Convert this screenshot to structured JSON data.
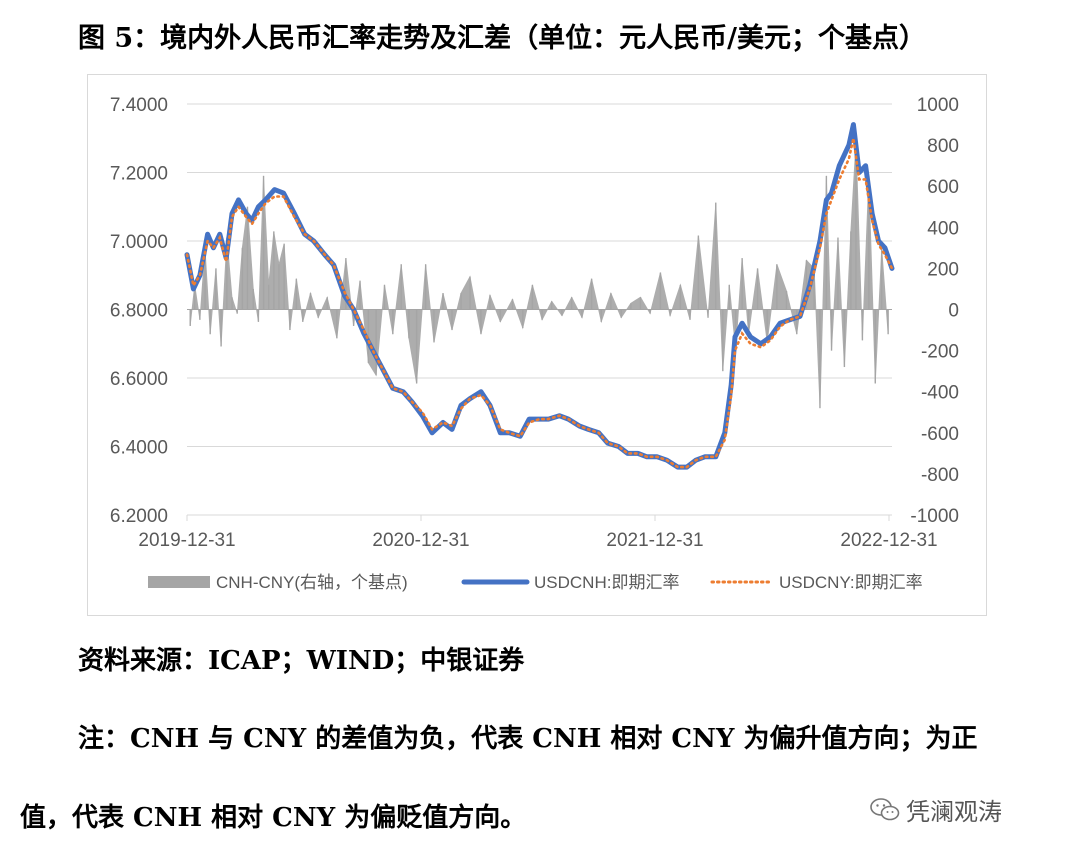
{
  "title": "图 5：境内外人民币汇率走势及汇差（单位：元人民币/美元；个基点）",
  "source_text": "资料来源：ICAP；WIND；中银证券",
  "note_line1": "注：CNH 与 CNY 的差值为负，代表 CNH 相对 CNY 为偏升值方向；为正",
  "note_line2": "值，代表 CNH 相对 CNY 为偏贬值方向。",
  "watermark": "凭澜观涛",
  "colors": {
    "spread": "#a5a5a5",
    "usdcnh": "#4472c4",
    "usdcny": "#ed7d31",
    "grid": "#d9d9d9",
    "axis_text": "#595959"
  },
  "chart_data": {
    "type": "line",
    "x_ticks": [
      "2019-12-31",
      "2020-12-31",
      "2021-12-31",
      "2022-12-31"
    ],
    "left_axis": {
      "ylim": [
        6.2,
        7.4
      ],
      "ticks": [
        "6.2000",
        "6.4000",
        "6.6000",
        "6.8000",
        "7.0000",
        "7.2000",
        "7.4000"
      ]
    },
    "right_axis": {
      "ylim": [
        -1000,
        1000
      ],
      "ticks": [
        "-1000",
        "-800",
        "-600",
        "-400",
        "-200",
        "0",
        "200",
        "400",
        "600",
        "800",
        "1000"
      ]
    },
    "legend": [
      "CNH-CNY(右轴，个基点)",
      "USDCNH:即期汇率",
      "USDCNY:即期汇率"
    ],
    "legend_position": "bottom",
    "series": [
      {
        "name": "USDCNH:即期汇率",
        "axis": "left",
        "x": [
          "2019-12-31",
          "2020-01-10",
          "2020-01-20",
          "2020-02-01",
          "2020-02-10",
          "2020-02-20",
          "2020-03-01",
          "2020-03-10",
          "2020-03-20",
          "2020-04-01",
          "2020-04-10",
          "2020-04-20",
          "2020-05-01",
          "2020-05-15",
          "2020-05-29",
          "2020-06-15",
          "2020-07-01",
          "2020-07-15",
          "2020-08-01",
          "2020-08-15",
          "2020-09-01",
          "2020-09-15",
          "2020-10-01",
          "2020-10-15",
          "2020-11-01",
          "2020-11-15",
          "2020-12-01",
          "2020-12-15",
          "2020-12-31",
          "2021-01-15",
          "2021-02-01",
          "2021-02-15",
          "2021-03-01",
          "2021-03-15",
          "2021-04-01",
          "2021-04-15",
          "2021-05-01",
          "2021-05-15",
          "2021-06-01",
          "2021-06-15",
          "2021-07-01",
          "2021-07-15",
          "2021-08-01",
          "2021-08-15",
          "2021-09-01",
          "2021-09-15",
          "2021-10-01",
          "2021-10-15",
          "2021-11-01",
          "2021-11-15",
          "2021-12-01",
          "2021-12-15",
          "2021-12-31",
          "2022-01-15",
          "2022-02-01",
          "2022-02-15",
          "2022-03-01",
          "2022-03-15",
          "2022-04-01",
          "2022-04-15",
          "2022-04-25",
          "2022-05-01",
          "2022-05-12",
          "2022-05-25",
          "2022-06-10",
          "2022-06-25",
          "2022-07-10",
          "2022-07-25",
          "2022-08-10",
          "2022-08-25",
          "2022-09-10",
          "2022-09-20",
          "2022-09-28",
          "2022-10-10",
          "2022-10-25",
          "2022-11-01",
          "2022-11-10",
          "2022-11-20",
          "2022-11-30",
          "2022-12-10",
          "2022-12-20",
          "2022-12-31"
        ],
        "values": [
          6.96,
          6.86,
          6.9,
          7.02,
          6.98,
          7.02,
          6.95,
          7.08,
          7.12,
          7.08,
          7.06,
          7.1,
          7.12,
          7.15,
          7.14,
          7.08,
          7.02,
          7.0,
          6.96,
          6.93,
          6.84,
          6.8,
          6.73,
          6.68,
          6.62,
          6.57,
          6.56,
          6.53,
          6.49,
          6.44,
          6.47,
          6.45,
          6.52,
          6.54,
          6.56,
          6.52,
          6.44,
          6.44,
          6.43,
          6.48,
          6.48,
          6.48,
          6.49,
          6.48,
          6.46,
          6.45,
          6.44,
          6.41,
          6.4,
          6.38,
          6.38,
          6.37,
          6.37,
          6.36,
          6.34,
          6.34,
          6.36,
          6.37,
          6.37,
          6.44,
          6.58,
          6.72,
          6.76,
          6.72,
          6.7,
          6.72,
          6.76,
          6.77,
          6.78,
          6.87,
          7.0,
          7.12,
          7.14,
          7.22,
          7.28,
          7.34,
          7.2,
          7.22,
          7.08,
          7.0,
          6.98,
          6.92
        ]
      },
      {
        "name": "USDCNY:即期汇率",
        "axis": "left",
        "x": [
          "2019-12-31",
          "2020-01-10",
          "2020-01-20",
          "2020-02-01",
          "2020-02-10",
          "2020-02-20",
          "2020-03-01",
          "2020-03-10",
          "2020-03-20",
          "2020-04-01",
          "2020-04-10",
          "2020-04-20",
          "2020-05-01",
          "2020-05-15",
          "2020-05-29",
          "2020-06-15",
          "2020-07-01",
          "2020-07-15",
          "2020-08-01",
          "2020-08-15",
          "2020-09-01",
          "2020-09-15",
          "2020-10-01",
          "2020-10-15",
          "2020-11-01",
          "2020-11-15",
          "2020-12-01",
          "2020-12-15",
          "2020-12-31",
          "2021-01-15",
          "2021-02-01",
          "2021-02-15",
          "2021-03-01",
          "2021-03-15",
          "2021-04-01",
          "2021-04-15",
          "2021-05-01",
          "2021-05-15",
          "2021-06-01",
          "2021-06-15",
          "2021-07-01",
          "2021-07-15",
          "2021-08-01",
          "2021-08-15",
          "2021-09-01",
          "2021-09-15",
          "2021-10-01",
          "2021-10-15",
          "2021-11-01",
          "2021-11-15",
          "2021-12-01",
          "2021-12-15",
          "2021-12-31",
          "2022-01-15",
          "2022-02-01",
          "2022-02-15",
          "2022-03-01",
          "2022-03-15",
          "2022-04-01",
          "2022-04-15",
          "2022-04-25",
          "2022-05-01",
          "2022-05-12",
          "2022-05-25",
          "2022-06-10",
          "2022-06-25",
          "2022-07-10",
          "2022-07-25",
          "2022-08-10",
          "2022-08-25",
          "2022-09-10",
          "2022-09-20",
          "2022-09-28",
          "2022-10-10",
          "2022-10-25",
          "2022-11-01",
          "2022-11-10",
          "2022-11-20",
          "2022-11-30",
          "2022-12-10",
          "2022-12-20",
          "2022-12-31"
        ],
        "values": [
          6.96,
          6.87,
          6.9,
          7.0,
          6.98,
          7.01,
          6.94,
          7.07,
          7.1,
          7.07,
          7.05,
          7.08,
          7.11,
          7.13,
          7.13,
          7.07,
          7.02,
          7.0,
          6.96,
          6.93,
          6.85,
          6.8,
          6.74,
          6.68,
          6.62,
          6.57,
          6.56,
          6.53,
          6.5,
          6.45,
          6.47,
          6.46,
          6.51,
          6.54,
          6.55,
          6.52,
          6.45,
          6.44,
          6.43,
          6.47,
          6.48,
          6.48,
          6.49,
          6.48,
          6.46,
          6.45,
          6.44,
          6.41,
          6.4,
          6.38,
          6.38,
          6.37,
          6.37,
          6.36,
          6.34,
          6.34,
          6.36,
          6.37,
          6.37,
          6.42,
          6.55,
          6.68,
          6.73,
          6.7,
          6.69,
          6.71,
          6.75,
          6.77,
          6.78,
          6.86,
          6.98,
          7.08,
          7.12,
          7.18,
          7.24,
          7.3,
          7.18,
          7.18,
          7.06,
          6.99,
          6.96,
          6.92
        ]
      },
      {
        "name": "CNH-CNY(右轴，个基点)",
        "axis": "right",
        "x": [
          "2020-01-05",
          "2020-01-12",
          "2020-01-20",
          "2020-01-28",
          "2020-02-05",
          "2020-02-14",
          "2020-02-22",
          "2020-03-02",
          "2020-03-10",
          "2020-03-18",
          "2020-03-26",
          "2020-04-03",
          "2020-04-12",
          "2020-04-20",
          "2020-04-28",
          "2020-05-06",
          "2020-05-14",
          "2020-05-22",
          "2020-05-30",
          "2020-06-08",
          "2020-06-18",
          "2020-06-28",
          "2020-07-10",
          "2020-07-22",
          "2020-08-05",
          "2020-08-20",
          "2020-09-03",
          "2020-09-15",
          "2020-09-25",
          "2020-10-08",
          "2020-10-20",
          "2020-11-02",
          "2020-11-15",
          "2020-11-28",
          "2020-12-10",
          "2020-12-22",
          "2021-01-05",
          "2021-01-18",
          "2021-02-01",
          "2021-02-15",
          "2021-03-01",
          "2021-03-15",
          "2021-04-01",
          "2021-04-15",
          "2021-05-01",
          "2021-05-20",
          "2021-06-05",
          "2021-06-20",
          "2021-07-05",
          "2021-07-20",
          "2021-08-05",
          "2021-08-20",
          "2021-09-05",
          "2021-09-20",
          "2021-10-05",
          "2021-10-20",
          "2021-11-05",
          "2021-11-20",
          "2021-12-05",
          "2021-12-20",
          "2022-01-05",
          "2022-01-20",
          "2022-02-05",
          "2022-02-20",
          "2022-03-05",
          "2022-03-20",
          "2022-04-01",
          "2022-04-12",
          "2022-04-22",
          "2022-05-02",
          "2022-05-12",
          "2022-05-22",
          "2022-06-05",
          "2022-06-20",
          "2022-07-05",
          "2022-07-20",
          "2022-08-05",
          "2022-08-20",
          "2022-09-01",
          "2022-09-10",
          "2022-09-20",
          "2022-09-28",
          "2022-10-08",
          "2022-10-18",
          "2022-10-28",
          "2022-11-05",
          "2022-11-15",
          "2022-11-25",
          "2022-12-05",
          "2022-12-15",
          "2022-12-25"
        ],
        "values": [
          -80,
          120,
          -50,
          300,
          -120,
          200,
          -180,
          350,
          60,
          -20,
          300,
          500,
          100,
          -60,
          650,
          120,
          380,
          220,
          320,
          -100,
          150,
          -60,
          80,
          -40,
          60,
          -140,
          250,
          -80,
          140,
          -260,
          -320,
          120,
          -120,
          220,
          -140,
          -360,
          220,
          -160,
          80,
          -100,
          80,
          160,
          -120,
          70,
          -60,
          50,
          -90,
          120,
          -50,
          40,
          -30,
          60,
          -40,
          150,
          -60,
          80,
          -40,
          30,
          60,
          -20,
          180,
          -30,
          120,
          -50,
          360,
          -40,
          520,
          -300,
          120,
          -200,
          250,
          -120,
          200,
          -160,
          220,
          90,
          -120,
          240,
          200,
          -480,
          650,
          -200,
          350,
          -280,
          380,
          820,
          -150,
          650,
          -360,
          300,
          -120
        ]
      }
    ]
  }
}
